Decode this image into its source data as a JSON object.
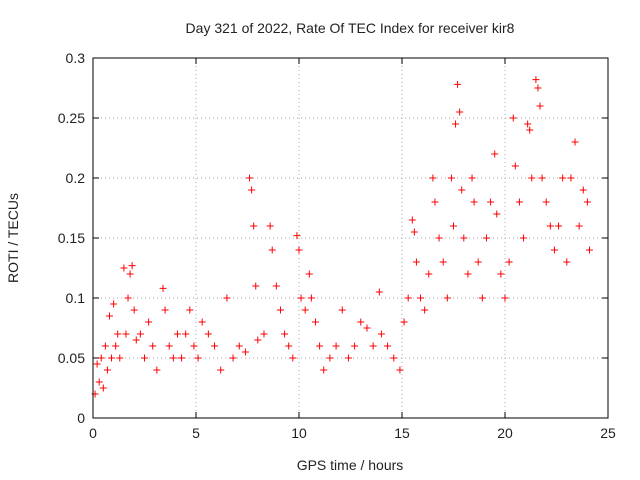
{
  "chart_data": {
    "type": "scatter",
    "title": "Day 321 of 2022, Rate Of TEC Index for receiver kir8",
    "xlabel": "GPS time / hours",
    "ylabel": "ROTI / TECUs",
    "xlim": [
      0,
      25
    ],
    "ylim": [
      0,
      0.3
    ],
    "xticks": [
      0,
      5,
      10,
      15,
      20,
      25
    ],
    "xtick_labels": [
      "0",
      "5",
      "10",
      "15",
      "20",
      "25"
    ],
    "yticks": [
      0,
      0.05,
      0.1,
      0.15,
      0.2,
      0.25,
      0.3
    ],
    "ytick_labels": [
      "0",
      "0.05",
      "0.1",
      "0.15",
      "0.2",
      "0.25",
      "0.3"
    ],
    "grid": true,
    "marker": "+",
    "color": "#ff0000",
    "series": [
      {
        "points": [
          [
            0.1,
            0.02
          ],
          [
            0.2,
            0.045
          ],
          [
            0.3,
            0.03
          ],
          [
            0.4,
            0.05
          ],
          [
            0.5,
            0.025
          ],
          [
            0.6,
            0.06
          ],
          [
            0.7,
            0.04
          ],
          [
            0.8,
            0.085
          ],
          [
            0.9,
            0.05
          ],
          [
            1.0,
            0.095
          ],
          [
            1.1,
            0.06
          ],
          [
            1.2,
            0.07
          ],
          [
            1.3,
            0.05
          ],
          [
            1.5,
            0.125
          ],
          [
            1.6,
            0.07
          ],
          [
            1.7,
            0.1
          ],
          [
            1.8,
            0.12
          ],
          [
            1.9,
            0.127
          ],
          [
            2.0,
            0.09
          ],
          [
            2.1,
            0.065
          ],
          [
            2.3,
            0.07
          ],
          [
            2.5,
            0.05
          ],
          [
            2.7,
            0.08
          ],
          [
            2.9,
            0.06
          ],
          [
            3.1,
            0.04
          ],
          [
            3.4,
            0.108
          ],
          [
            3.5,
            0.09
          ],
          [
            3.7,
            0.06
          ],
          [
            3.9,
            0.05
          ],
          [
            4.1,
            0.07
          ],
          [
            4.3,
            0.05
          ],
          [
            4.5,
            0.07
          ],
          [
            4.7,
            0.09
          ],
          [
            4.9,
            0.06
          ],
          [
            5.1,
            0.05
          ],
          [
            5.3,
            0.08
          ],
          [
            5.6,
            0.07
          ],
          [
            5.9,
            0.06
          ],
          [
            6.2,
            0.04
          ],
          [
            6.5,
            0.1
          ],
          [
            6.8,
            0.05
          ],
          [
            7.1,
            0.06
          ],
          [
            7.4,
            0.055
          ],
          [
            7.6,
            0.2
          ],
          [
            7.7,
            0.19
          ],
          [
            7.8,
            0.16
          ],
          [
            7.9,
            0.11
          ],
          [
            8.0,
            0.065
          ],
          [
            8.3,
            0.07
          ],
          [
            8.6,
            0.16
          ],
          [
            8.7,
            0.14
          ],
          [
            8.9,
            0.11
          ],
          [
            9.1,
            0.09
          ],
          [
            9.3,
            0.07
          ],
          [
            9.5,
            0.06
          ],
          [
            9.7,
            0.05
          ],
          [
            9.9,
            0.152
          ],
          [
            10.0,
            0.14
          ],
          [
            10.1,
            0.1
          ],
          [
            10.3,
            0.09
          ],
          [
            10.5,
            0.12
          ],
          [
            10.6,
            0.1
          ],
          [
            10.8,
            0.08
          ],
          [
            11.0,
            0.06
          ],
          [
            11.2,
            0.04
          ],
          [
            11.5,
            0.05
          ],
          [
            11.8,
            0.06
          ],
          [
            12.1,
            0.09
          ],
          [
            12.4,
            0.05
          ],
          [
            12.7,
            0.06
          ],
          [
            13.0,
            0.08
          ],
          [
            13.3,
            0.075
          ],
          [
            13.6,
            0.06
          ],
          [
            13.9,
            0.105
          ],
          [
            14.0,
            0.07
          ],
          [
            14.3,
            0.06
          ],
          [
            14.6,
            0.05
          ],
          [
            14.9,
            0.04
          ],
          [
            15.1,
            0.08
          ],
          [
            15.3,
            0.1
          ],
          [
            15.5,
            0.165
          ],
          [
            15.6,
            0.155
          ],
          [
            15.7,
            0.13
          ],
          [
            15.9,
            0.1
          ],
          [
            16.1,
            0.09
          ],
          [
            16.3,
            0.12
          ],
          [
            16.5,
            0.2
          ],
          [
            16.6,
            0.18
          ],
          [
            16.8,
            0.15
          ],
          [
            17.0,
            0.13
          ],
          [
            17.2,
            0.1
          ],
          [
            17.4,
            0.2
          ],
          [
            17.5,
            0.16
          ],
          [
            17.6,
            0.245
          ],
          [
            17.7,
            0.278
          ],
          [
            17.8,
            0.255
          ],
          [
            17.9,
            0.19
          ],
          [
            18.0,
            0.15
          ],
          [
            18.2,
            0.12
          ],
          [
            18.4,
            0.2
          ],
          [
            18.5,
            0.18
          ],
          [
            18.7,
            0.13
          ],
          [
            18.9,
            0.1
          ],
          [
            19.1,
            0.15
          ],
          [
            19.3,
            0.18
          ],
          [
            19.5,
            0.22
          ],
          [
            19.6,
            0.17
          ],
          [
            19.8,
            0.12
          ],
          [
            20.0,
            0.1
          ],
          [
            20.2,
            0.13
          ],
          [
            20.4,
            0.25
          ],
          [
            20.5,
            0.21
          ],
          [
            20.7,
            0.18
          ],
          [
            20.9,
            0.15
          ],
          [
            21.1,
            0.245
          ],
          [
            21.2,
            0.24
          ],
          [
            21.3,
            0.2
          ],
          [
            21.5,
            0.282
          ],
          [
            21.6,
            0.275
          ],
          [
            21.7,
            0.26
          ],
          [
            21.8,
            0.2
          ],
          [
            22.0,
            0.18
          ],
          [
            22.2,
            0.16
          ],
          [
            22.4,
            0.14
          ],
          [
            22.6,
            0.16
          ],
          [
            22.8,
            0.2
          ],
          [
            23.0,
            0.13
          ],
          [
            23.2,
            0.2
          ],
          [
            23.4,
            0.23
          ],
          [
            23.6,
            0.16
          ],
          [
            23.8,
            0.19
          ],
          [
            24.0,
            0.18
          ],
          [
            24.1,
            0.14
          ]
        ]
      }
    ]
  }
}
